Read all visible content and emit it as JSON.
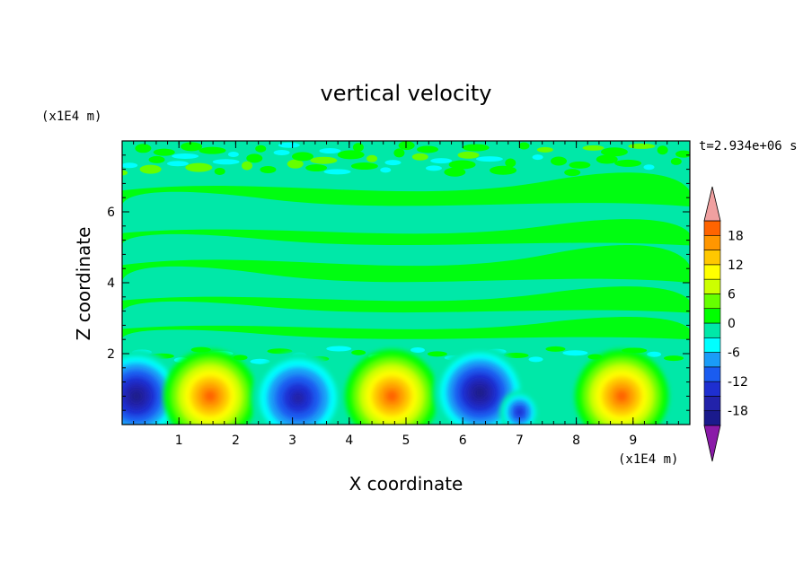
{
  "chart_data": {
    "type": "heatmap",
    "title": "vertical velocity",
    "xlabel": "X coordinate",
    "ylabel": "Z coordinate",
    "x_multiplier": "(x1E4 m)",
    "y_multiplier": "(x1E4 m)",
    "time_label": "t=2.934e+06 s",
    "xlim": [
      0,
      10
    ],
    "ylim": [
      0,
      8
    ],
    "x_ticks": [
      1,
      2,
      3,
      4,
      5,
      6,
      7,
      8,
      9
    ],
    "y_ticks": [
      2,
      4,
      6
    ],
    "colorbar": {
      "levels": [
        -21,
        -18,
        -15,
        -12,
        -9,
        -6,
        -3,
        0,
        3,
        6,
        9,
        12,
        15,
        18,
        21
      ],
      "tick_labels": [
        "18",
        "12",
        "6",
        "0",
        "-6",
        "-12",
        "-18"
      ],
      "tick_values": [
        18,
        12,
        6,
        0,
        -6,
        -12,
        -18
      ],
      "colors": [
        "#1a1a8c",
        "#2222aa",
        "#1e2fd0",
        "#1a5cf0",
        "#1a9cf7",
        "#00ffff",
        "#00e8a8",
        "#00ff00",
        "#66ff00",
        "#ccff00",
        "#ffff00",
        "#ffc800",
        "#ff9600",
        "#ff6400",
        "#ff2800",
        "#ee0000"
      ],
      "under_color": "#8a1aa8",
      "over_color": "#f0a0a0"
    },
    "cells": [
      {
        "x": 0.25,
        "z": 0.8,
        "value": -14
      },
      {
        "x": 1.55,
        "z": 0.8,
        "value": 16
      },
      {
        "x": 3.1,
        "z": 0.75,
        "value": -12
      },
      {
        "x": 4.75,
        "z": 0.8,
        "value": 14
      },
      {
        "x": 6.3,
        "z": 0.9,
        "value": -16
      },
      {
        "x": 7.0,
        "z": 0.35,
        "value": -9
      },
      {
        "x": 8.8,
        "z": 0.8,
        "value": 15
      }
    ],
    "background_value": 0
  }
}
